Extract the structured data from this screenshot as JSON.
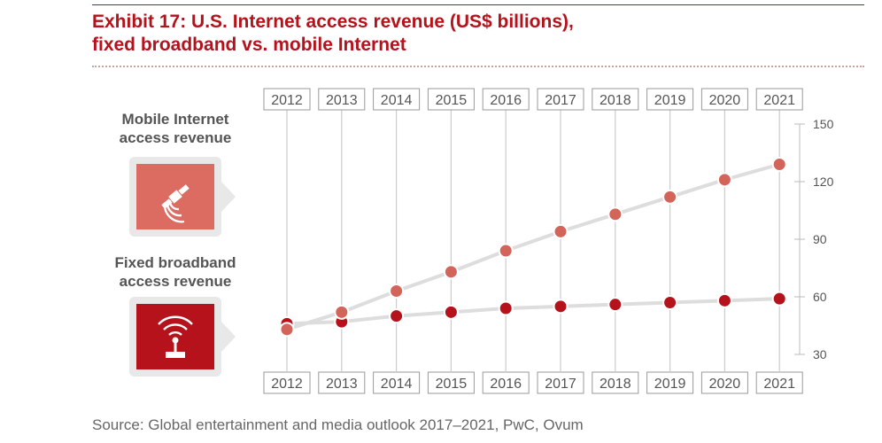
{
  "title_line1": "Exhibit 17: U.S. Internet access revenue (US$ billions),",
  "title_line2": "fixed broadband vs. mobile Internet",
  "source": "Source: Global entertainment and media outlook 2017–2021, PwC, Ovum",
  "legend": {
    "mobile_line1": "Mobile Internet",
    "mobile_line2": "access revenue",
    "fixed_line1": "Fixed broadband",
    "fixed_line2": "access revenue",
    "mobile_icon": "satellite-icon",
    "fixed_icon": "wifi-router-icon"
  },
  "colors": {
    "brand_red": "#b5121b",
    "mobile_marker": "#d2645a",
    "fixed_marker": "#b5121b",
    "line": "#dddddd",
    "mobile_box": "#dc6b61",
    "fixed_box": "#b5121b"
  },
  "chart_data": {
    "type": "line",
    "x": [
      "2012",
      "2013",
      "2014",
      "2015",
      "2016",
      "2017",
      "2018",
      "2019",
      "2020",
      "2021"
    ],
    "series": [
      {
        "name": "Mobile Internet access revenue",
        "values": [
          43,
          52,
          63,
          73,
          84,
          94,
          103,
          112,
          121,
          129
        ]
      },
      {
        "name": "Fixed broadband access revenue",
        "values": [
          46,
          47,
          50,
          52,
          54,
          55,
          56,
          57,
          58,
          59
        ]
      }
    ],
    "yticks": [
      150,
      120,
      90,
      60,
      30
    ],
    "ylim": [
      30,
      150
    ],
    "grid": "vertical",
    "y_axis_position": "right"
  }
}
